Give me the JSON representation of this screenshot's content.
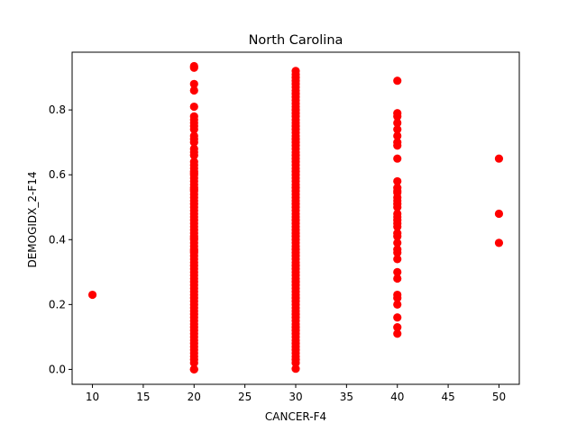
{
  "chart_data": {
    "type": "scatter",
    "title": "North Carolina",
    "xlabel": "CANCER-F4",
    "ylabel": "DEMOGIDX_2-F14",
    "xlim": [
      8,
      52
    ],
    "ylim": [
      -0.046,
      0.978
    ],
    "xticks": [
      "10",
      "15",
      "20",
      "25",
      "30",
      "35",
      "40",
      "45",
      "50"
    ],
    "yticks": [
      "0.0",
      "0.2",
      "0.4",
      "0.6",
      "0.8"
    ],
    "grid": false,
    "marker_color": "#ff0000",
    "series": [
      {
        "x": [
          10,
          20,
          20,
          20,
          20,
          20,
          20,
          20,
          20,
          20,
          20,
          20,
          20,
          20,
          20,
          20,
          20,
          20,
          20,
          20,
          20,
          20,
          20,
          20,
          20,
          20,
          20,
          20,
          20,
          20,
          20,
          20,
          20,
          20,
          20,
          20,
          20,
          20,
          20,
          20,
          20,
          20,
          20,
          20,
          20,
          20,
          20,
          20,
          20,
          20,
          20,
          20,
          20,
          20,
          20,
          20,
          20,
          20,
          20,
          20,
          20,
          20,
          20,
          20,
          20,
          20,
          20,
          20,
          20,
          20,
          20,
          20,
          20,
          20,
          20,
          20,
          20,
          20,
          20,
          20,
          20,
          20,
          20,
          20,
          20,
          20,
          30,
          30,
          30,
          30,
          30,
          30,
          30,
          30,
          30,
          30,
          30,
          30,
          30,
          30,
          30,
          30,
          30,
          30,
          30,
          30,
          30,
          30,
          30,
          30,
          30,
          30,
          30,
          30,
          30,
          30,
          30,
          30,
          30,
          30,
          30,
          30,
          30,
          30,
          30,
          30,
          30,
          30,
          30,
          30,
          30,
          30,
          30,
          30,
          30,
          30,
          30,
          30,
          30,
          30,
          30,
          30,
          30,
          30,
          30,
          30,
          30,
          30,
          30,
          30,
          30,
          30,
          30,
          30,
          30,
          30,
          30,
          30,
          30,
          30,
          30,
          30,
          30,
          30,
          30,
          30,
          30,
          30,
          30,
          30,
          30,
          30,
          30,
          30,
          30,
          30,
          30,
          30,
          40,
          40,
          40,
          40,
          40,
          40,
          40,
          40,
          40,
          40,
          40,
          40,
          40,
          40,
          40,
          40,
          40,
          40,
          40,
          40,
          40,
          40,
          40,
          40,
          40,
          40,
          40,
          40,
          40,
          40,
          40,
          40,
          40,
          40,
          40,
          40,
          50,
          50,
          50
        ],
        "y": [
          0.23,
          0.0,
          0.03,
          0.05,
          0.07,
          0.08,
          0.1,
          0.12,
          0.14,
          0.15,
          0.17,
          0.19,
          0.2,
          0.22,
          0.24,
          0.25,
          0.27,
          0.28,
          0.3,
          0.32,
          0.33,
          0.35,
          0.37,
          0.38,
          0.4,
          0.41,
          0.43,
          0.44,
          0.46,
          0.47,
          0.49,
          0.5,
          0.52,
          0.53,
          0.55,
          0.56,
          0.58,
          0.59,
          0.61,
          0.62,
          0.64,
          0.66,
          0.68,
          0.7,
          0.72,
          0.74,
          0.76,
          0.78,
          0.81,
          0.86,
          0.88,
          0.93,
          0.935,
          0.06,
          0.09,
          0.11,
          0.13,
          0.16,
          0.18,
          0.21,
          0.23,
          0.26,
          0.29,
          0.31,
          0.34,
          0.36,
          0.39,
          0.42,
          0.45,
          0.48,
          0.51,
          0.54,
          0.57,
          0.6,
          0.63,
          0.67,
          0.71,
          0.75,
          0.77,
          0.04,
          0.02,
          0.365,
          0.405,
          0.555,
          0.605,
          0.0,
          0.002,
          0.02,
          0.03,
          0.04,
          0.05,
          0.06,
          0.07,
          0.08,
          0.09,
          0.1,
          0.11,
          0.12,
          0.13,
          0.14,
          0.15,
          0.16,
          0.17,
          0.18,
          0.19,
          0.2,
          0.21,
          0.22,
          0.23,
          0.24,
          0.25,
          0.26,
          0.27,
          0.28,
          0.29,
          0.3,
          0.31,
          0.32,
          0.33,
          0.34,
          0.35,
          0.36,
          0.37,
          0.38,
          0.39,
          0.4,
          0.41,
          0.42,
          0.43,
          0.44,
          0.45,
          0.46,
          0.47,
          0.48,
          0.49,
          0.5,
          0.51,
          0.52,
          0.53,
          0.54,
          0.55,
          0.56,
          0.57,
          0.58,
          0.59,
          0.6,
          0.61,
          0.62,
          0.63,
          0.64,
          0.65,
          0.66,
          0.67,
          0.68,
          0.69,
          0.7,
          0.71,
          0.72,
          0.73,
          0.74,
          0.75,
          0.76,
          0.77,
          0.78,
          0.79,
          0.8,
          0.81,
          0.82,
          0.83,
          0.84,
          0.85,
          0.86,
          0.87,
          0.88,
          0.89,
          0.9,
          0.91,
          0.92,
          0.11,
          0.13,
          0.16,
          0.2,
          0.22,
          0.23,
          0.28,
          0.3,
          0.34,
          0.36,
          0.37,
          0.39,
          0.41,
          0.42,
          0.44,
          0.45,
          0.47,
          0.48,
          0.5,
          0.51,
          0.52,
          0.53,
          0.55,
          0.56,
          0.58,
          0.65,
          0.69,
          0.7,
          0.72,
          0.74,
          0.76,
          0.78,
          0.79,
          0.89,
          0.545,
          0.46,
          0.39,
          0.48,
          0.65
        ]
      }
    ]
  }
}
